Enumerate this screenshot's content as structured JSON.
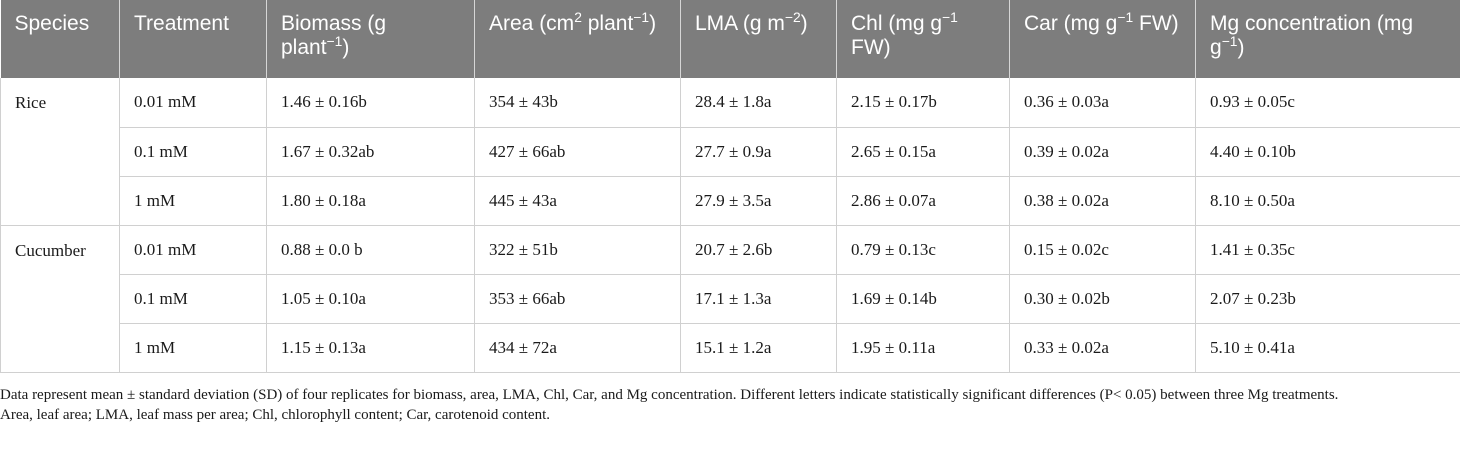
{
  "table": {
    "headers": [
      {
        "pre": "Species",
        "sup": "",
        "post": ""
      },
      {
        "pre": "Treatment",
        "sup": "",
        "post": ""
      },
      {
        "pre": "Biomass (g plant",
        "sup": "−1",
        "post": ")"
      },
      {
        "pre": "Area (cm",
        "sup": "2",
        "post": " plant",
        "sup2": "−1",
        "post2": ")"
      },
      {
        "pre": "LMA (g m",
        "sup": "−2",
        "post": ")"
      },
      {
        "pre": "Chl (mg g",
        "sup": "−1",
        "post": " FW)"
      },
      {
        "pre": "Car (mg g",
        "sup": "−1",
        "post": " FW)"
      },
      {
        "pre": "Mg concentration (mg g",
        "sup": "−1",
        "post": ")"
      }
    ],
    "groups": [
      {
        "species": "Rice",
        "rows": [
          [
            "0.01 mM",
            "1.46 ± 0.16b",
            "354 ± 43b",
            "28.4 ± 1.8a",
            "2.15 ± 0.17b",
            "0.36 ± 0.03a",
            "0.93 ± 0.05c"
          ],
          [
            "0.1 mM",
            "1.67 ± 0.32ab",
            "427 ± 66ab",
            "27.7 ± 0.9a",
            "2.65 ± 0.15a",
            "0.39 ± 0.02a",
            "4.40 ± 0.10b"
          ],
          [
            "1 mM",
            "1.80 ± 0.18a",
            "445 ± 43a",
            "27.9 ± 3.5a",
            "2.86 ± 0.07a",
            "0.38 ± 0.02a",
            "8.10 ± 0.50a"
          ]
        ]
      },
      {
        "species": "Cucumber",
        "rows": [
          [
            "0.01 mM",
            "0.88 ± 0.0 b",
            "322 ± 51b",
            "20.7 ± 2.6b",
            "0.79 ± 0.13c",
            "0.15 ± 0.02c",
            "1.41 ± 0.35c"
          ],
          [
            "0.1 mM",
            "1.05 ± 0.10a",
            "353 ± 66ab",
            "17.1 ± 1.3a",
            "1.69 ± 0.14b",
            "0.30 ± 0.02b",
            "2.07 ± 0.23b"
          ],
          [
            "1 mM",
            "1.15 ± 0.13a",
            "434 ± 72a",
            "15.1 ± 1.2a",
            "1.95 ± 0.11a",
            "0.33 ± 0.02a",
            "5.10 ± 0.41a"
          ]
        ]
      }
    ]
  },
  "footnotes": [
    "Data represent mean ± standard deviation (SD) of four replicates for biomass, area, LMA, Chl, Car, and Mg concentration. Different letters indicate statistically significant differences (P< 0.05) between three Mg treatments.",
    "Area, leaf area; LMA, leaf mass per area; Chl, chlorophyll content; Car, carotenoid content."
  ]
}
